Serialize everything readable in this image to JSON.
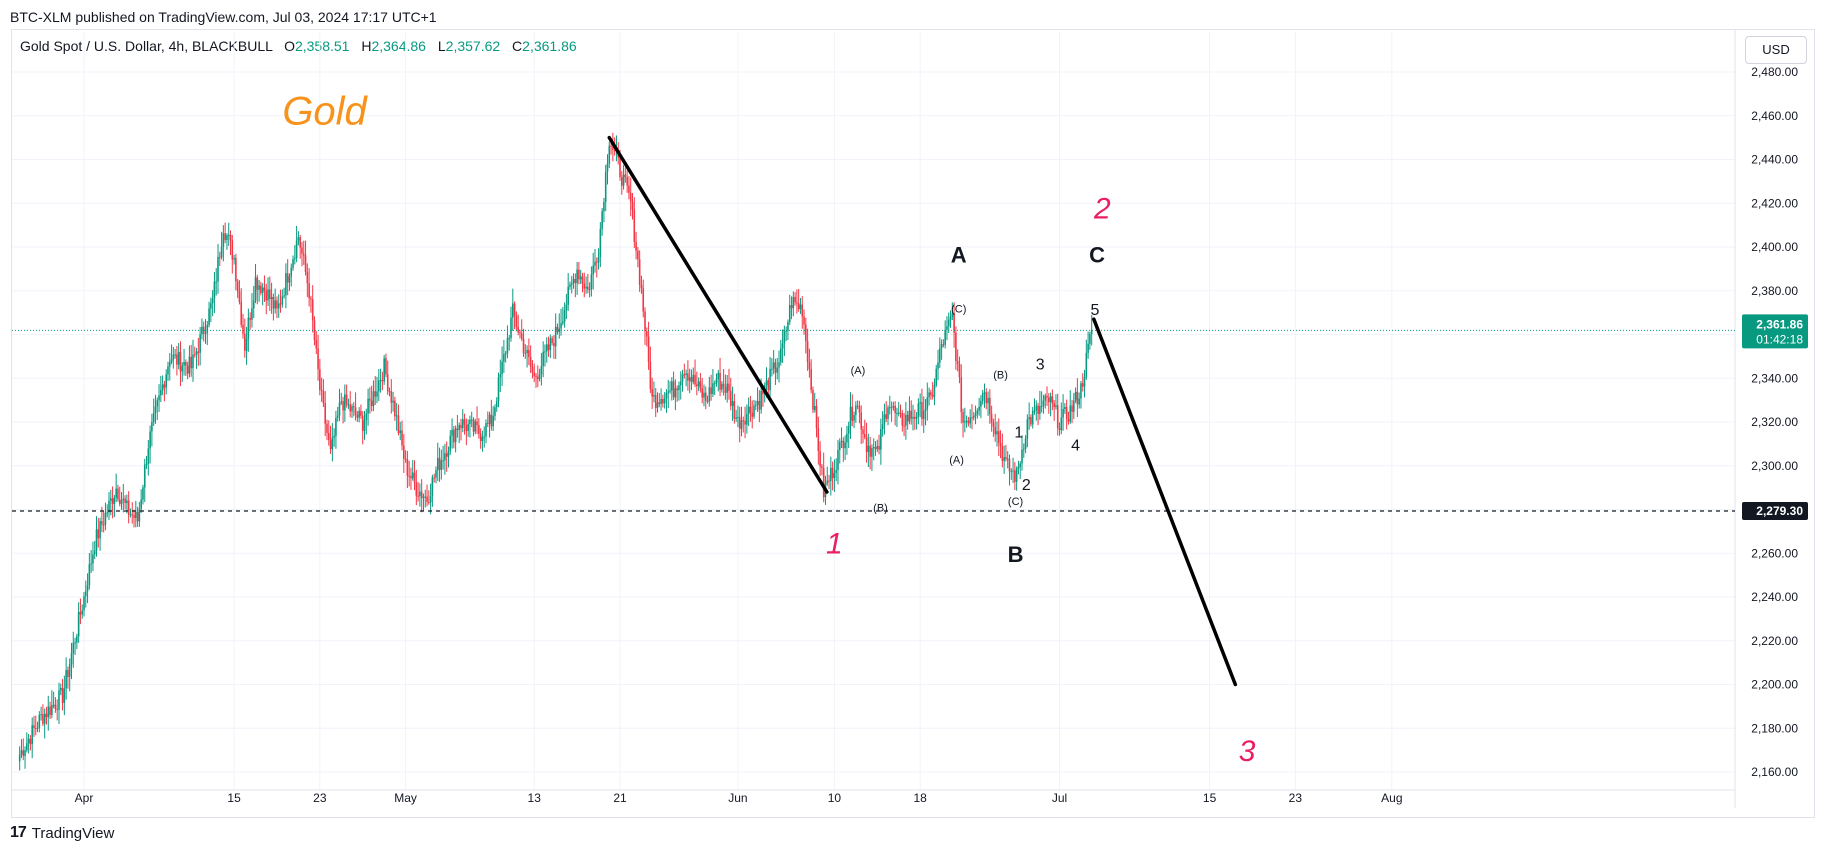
{
  "header": {
    "attribution": "BTC-XLM published on TradingView.com, Jul 03, 2024 17:17 UTC+1",
    "symbol": "Gold Spot / U.S. Dollar, 4h, BLACKBULL",
    "ohlc": {
      "o_label": "O",
      "o": "2,358.51",
      "h_label": "H",
      "h": "2,364.86",
      "l_label": "L",
      "l": "2,357.62",
      "c_label": "C",
      "c": "2,361.86"
    },
    "currency": "USD"
  },
  "footer": {
    "logo": "17",
    "brand": "TradingView"
  },
  "colors": {
    "up": "#089981",
    "down": "#f23645",
    "accent_orange": "#f7931a",
    "wave_pink": "#e91e63",
    "price_tag": "#089981"
  },
  "chart_data": {
    "type": "candlestick",
    "title": "Gold",
    "ylim": [
      2150,
      2490
    ],
    "y_ticks": [
      "2,160.00",
      "2,180.00",
      "2,200.00",
      "2,220.00",
      "2,240.00",
      "2,260.00",
      "2,280.00",
      "2,300.00",
      "2,320.00",
      "2,340.00",
      "2,360.00",
      "2,380.00",
      "2,400.00",
      "2,420.00",
      "2,440.00",
      "2,460.00",
      "2,480.00"
    ],
    "y_tick_values": [
      2160,
      2180,
      2200,
      2220,
      2240,
      2260,
      2280,
      2300,
      2320,
      2340,
      2360,
      2380,
      2400,
      2420,
      2440,
      2460,
      2480
    ],
    "x_ticks": [
      {
        "label": "Apr",
        "day": 0
      },
      {
        "label": "15",
        "day": 14
      },
      {
        "label": "23",
        "day": 22
      },
      {
        "label": "May",
        "day": 30
      },
      {
        "label": "13",
        "day": 42
      },
      {
        "label": "21",
        "day": 50
      },
      {
        "label": "Jun",
        "day": 61
      },
      {
        "label": "10",
        "day": 70
      },
      {
        "label": "18",
        "day": 78
      },
      {
        "label": "Jul",
        "day": 91
      },
      {
        "label": "15",
        "day": 105
      },
      {
        "label": "23",
        "day": 113
      },
      {
        "label": "Aug",
        "day": 122
      }
    ],
    "current_price": {
      "value": 2361.86,
      "label": "2,361.86",
      "countdown": "01:42:18"
    },
    "horizontal_level": {
      "value": 2279.3,
      "label": "2,279.30"
    },
    "price_path": [
      [
        -6,
        2168
      ],
      [
        -4,
        2185
      ],
      [
        -2,
        2195
      ],
      [
        0,
        2240
      ],
      [
        1,
        2265
      ],
      [
        3,
        2290
      ],
      [
        4,
        2280
      ],
      [
        5,
        2275
      ],
      [
        6,
        2310
      ],
      [
        8,
        2350
      ],
      [
        10,
        2345
      ],
      [
        12,
        2375
      ],
      [
        13,
        2410
      ],
      [
        14,
        2395
      ],
      [
        15,
        2355
      ],
      [
        16,
        2385
      ],
      [
        17,
        2380
      ],
      [
        18,
        2370
      ],
      [
        20,
        2405
      ],
      [
        21,
        2380
      ],
      [
        22,
        2335
      ],
      [
        23,
        2305
      ],
      [
        24,
        2330
      ],
      [
        26,
        2320
      ],
      [
        28,
        2345
      ],
      [
        29,
        2325
      ],
      [
        30,
        2300
      ],
      [
        31,
        2290
      ],
      [
        32,
        2285
      ],
      [
        33,
        2300
      ],
      [
        35,
        2320
      ],
      [
        37,
        2315
      ],
      [
        38,
        2320
      ],
      [
        40,
        2370
      ],
      [
        41,
        2355
      ],
      [
        42,
        2340
      ],
      [
        44,
        2360
      ],
      [
        46,
        2390
      ],
      [
        47,
        2380
      ],
      [
        48,
        2400
      ],
      [
        49,
        2450
      ],
      [
        50,
        2435
      ],
      [
        51,
        2420
      ],
      [
        52,
        2380
      ],
      [
        53,
        2330
      ],
      [
        55,
        2335
      ],
      [
        56,
        2345
      ],
      [
        58,
        2330
      ],
      [
        59,
        2340
      ],
      [
        60,
        2335
      ],
      [
        61,
        2320
      ],
      [
        63,
        2330
      ],
      [
        64,
        2340
      ],
      [
        65,
        2350
      ],
      [
        66,
        2375
      ],
      [
        67,
        2372
      ],
      [
        68,
        2330
      ],
      [
        69,
        2288
      ],
      [
        70,
        2300
      ],
      [
        71,
        2315
      ],
      [
        72,
        2330
      ],
      [
        73,
        2310
      ],
      [
        74,
        2305
      ],
      [
        75,
        2330
      ],
      [
        76,
        2320
      ],
      [
        78,
        2325
      ],
      [
        79,
        2330
      ],
      [
        80,
        2355
      ],
      [
        81,
        2368
      ],
      [
        82,
        2320
      ],
      [
        83,
        2325
      ],
      [
        84,
        2335
      ],
      [
        85,
        2318
      ],
      [
        86,
        2300
      ],
      [
        87,
        2295
      ],
      [
        88,
        2320
      ],
      [
        89,
        2325
      ],
      [
        90,
        2330
      ],
      [
        91,
        2320
      ],
      [
        92,
        2325
      ],
      [
        93,
        2335
      ],
      [
        94,
        2362
      ]
    ],
    "projection_lines": [
      {
        "from": [
          49,
          2450
        ],
        "to": [
          69.3,
          2288
        ]
      },
      {
        "from": [
          94.2,
          2367
        ],
        "to": [
          107.4,
          2200
        ]
      }
    ],
    "annotations": [
      {
        "text": "Gold",
        "day": 18.5,
        "price": 2456,
        "color": "#f7931a",
        "style": "title"
      },
      {
        "text": "1",
        "day": 70,
        "price": 2260,
        "color": "#e91e63",
        "style": "wave"
      },
      {
        "text": "2",
        "day": 95,
        "price": 2413,
        "color": "#e91e63",
        "style": "wave"
      },
      {
        "text": "3",
        "day": 108.5,
        "price": 2165,
        "color": "#e91e63",
        "style": "wave"
      },
      {
        "text": "A",
        "day": 81.6,
        "price": 2393,
        "color": "#131722",
        "style": "big"
      },
      {
        "text": "B",
        "day": 86.9,
        "price": 2256,
        "color": "#131722",
        "style": "big"
      },
      {
        "text": "C",
        "day": 94.5,
        "price": 2393,
        "color": "#131722",
        "style": "big"
      },
      {
        "text": "(A)",
        "day": 72.2,
        "price": 2342,
        "color": "#131722",
        "style": "small"
      },
      {
        "text": "(B)",
        "day": 74.3,
        "price": 2279,
        "color": "#131722",
        "style": "small"
      },
      {
        "text": "(C)",
        "day": 81.6,
        "price": 2370,
        "color": "#131722",
        "style": "small"
      },
      {
        "text": "(A)",
        "day": 81.4,
        "price": 2301,
        "color": "#131722",
        "style": "small"
      },
      {
        "text": "(B)",
        "day": 85.5,
        "price": 2340,
        "color": "#131722",
        "style": "small"
      },
      {
        "text": "(C)",
        "day": 86.9,
        "price": 2282,
        "color": "#131722",
        "style": "small"
      },
      {
        "text": "1",
        "day": 87.2,
        "price": 2313,
        "color": "#131722",
        "style": "mid"
      },
      {
        "text": "2",
        "day": 87.9,
        "price": 2289,
        "color": "#131722",
        "style": "mid"
      },
      {
        "text": "3",
        "day": 89.2,
        "price": 2344,
        "color": "#131722",
        "style": "mid"
      },
      {
        "text": "4",
        "day": 92.5,
        "price": 2307,
        "color": "#131722",
        "style": "mid"
      },
      {
        "text": "5",
        "day": 94.3,
        "price": 2369,
        "color": "#131722",
        "style": "mid"
      }
    ]
  }
}
